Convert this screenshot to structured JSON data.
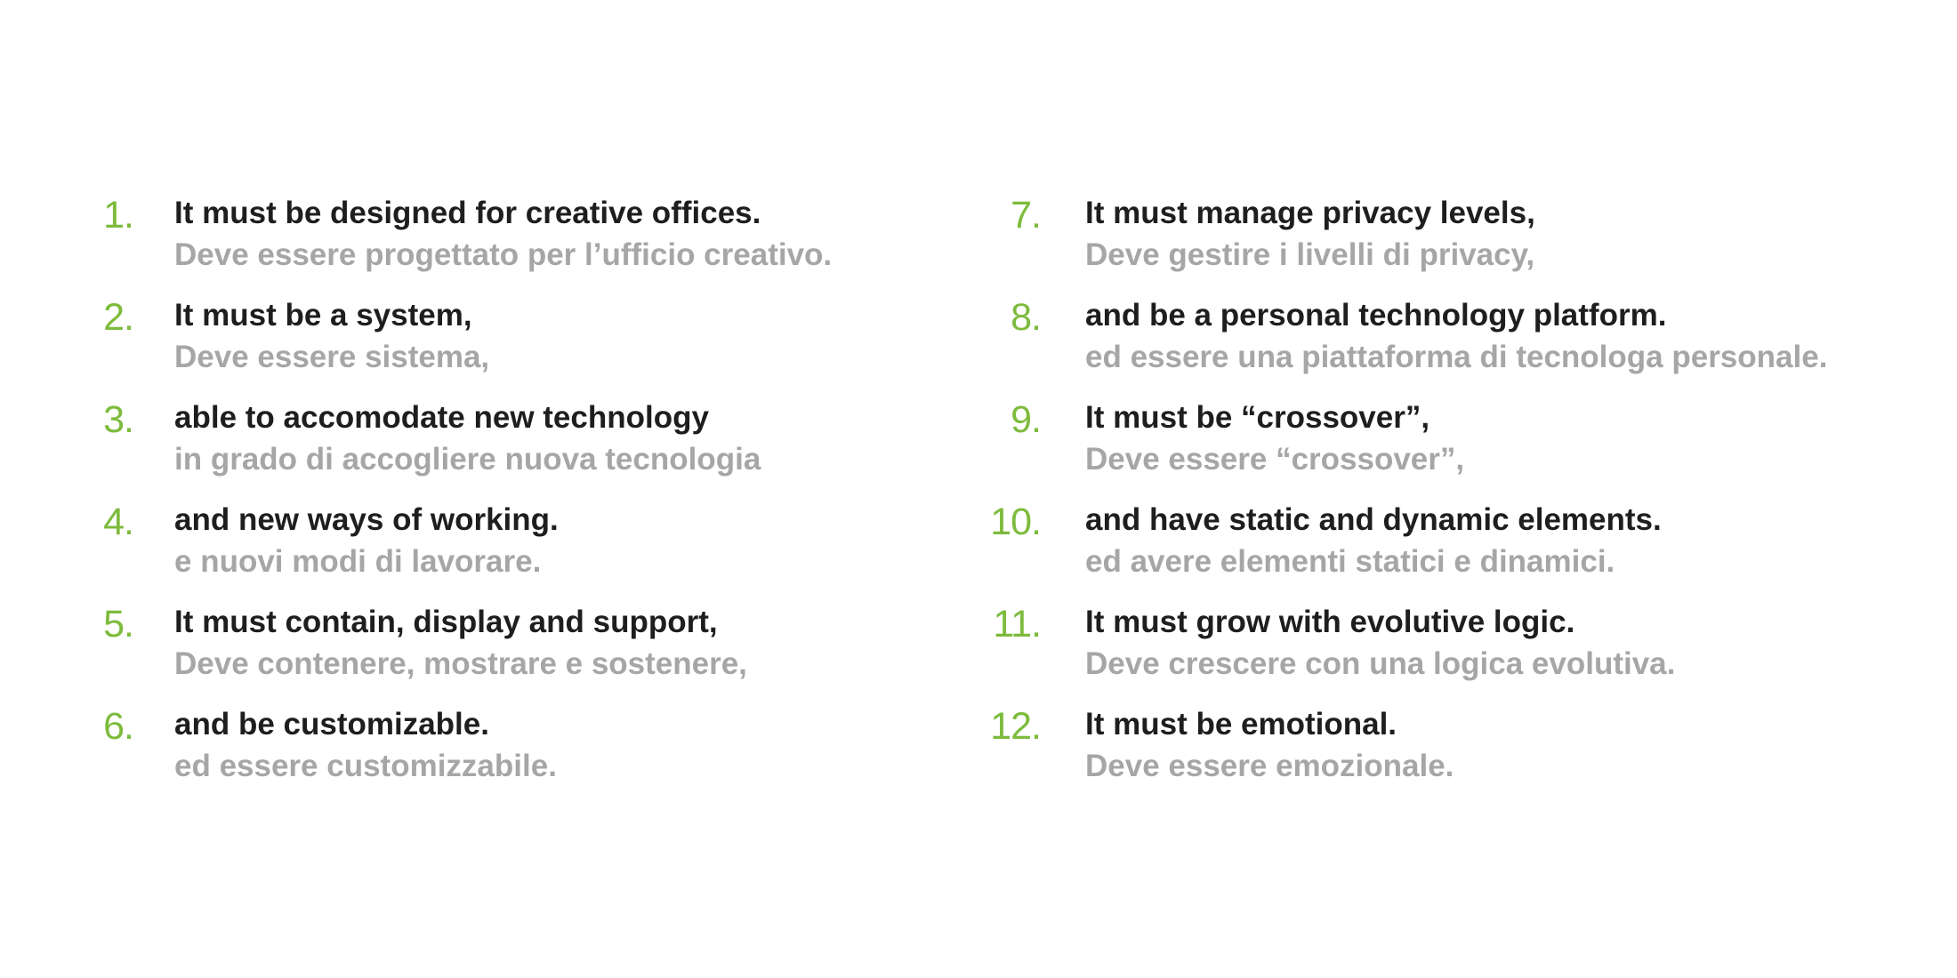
{
  "colors": {
    "number": "#7dbb3c",
    "english": "#1e1e1e",
    "italian": "#a6a6a6"
  },
  "left_column": [
    {
      "number": "1.",
      "english": "It must be designed for creative offices.",
      "italian": "Deve essere progettato per l’ufficio creativo."
    },
    {
      "number": "2.",
      "english": "It must be a system,",
      "italian": "Deve essere sistema,"
    },
    {
      "number": "3.",
      "english": "able to accomodate new technology",
      "italian": "in grado di accogliere nuova tecnologia"
    },
    {
      "number": "4.",
      "english": "and new ways of working.",
      "italian": "e nuovi modi di lavorare."
    },
    {
      "number": "5.",
      "english": "It must contain, display and support,",
      "italian": "Deve contenere, mostrare e sostenere,"
    },
    {
      "number": "6.",
      "english": "and be customizable.",
      "italian": "ed essere customizzabile."
    }
  ],
  "right_column": [
    {
      "number": "7.",
      "english": "It must manage privacy levels,",
      "italian": "Deve gestire i livelli di privacy,"
    },
    {
      "number": "8.",
      "english": "and be a personal technology platform.",
      "italian": "ed essere una piattaforma di tecnologa personale."
    },
    {
      "number": "9.",
      "english": "It must be “crossover”,",
      "italian": "Deve essere “crossover”,"
    },
    {
      "number": "10.",
      "english": "and have static and dynamic elements.",
      "italian": "ed avere elementi statici e dinamici."
    },
    {
      "number": "11.",
      "english": "It must grow with evolutive logic.",
      "italian": "Deve crescere con una logica evolutiva."
    },
    {
      "number": "12.",
      "english": "It must be emotional.",
      "italian": "Deve essere emozionale."
    }
  ]
}
